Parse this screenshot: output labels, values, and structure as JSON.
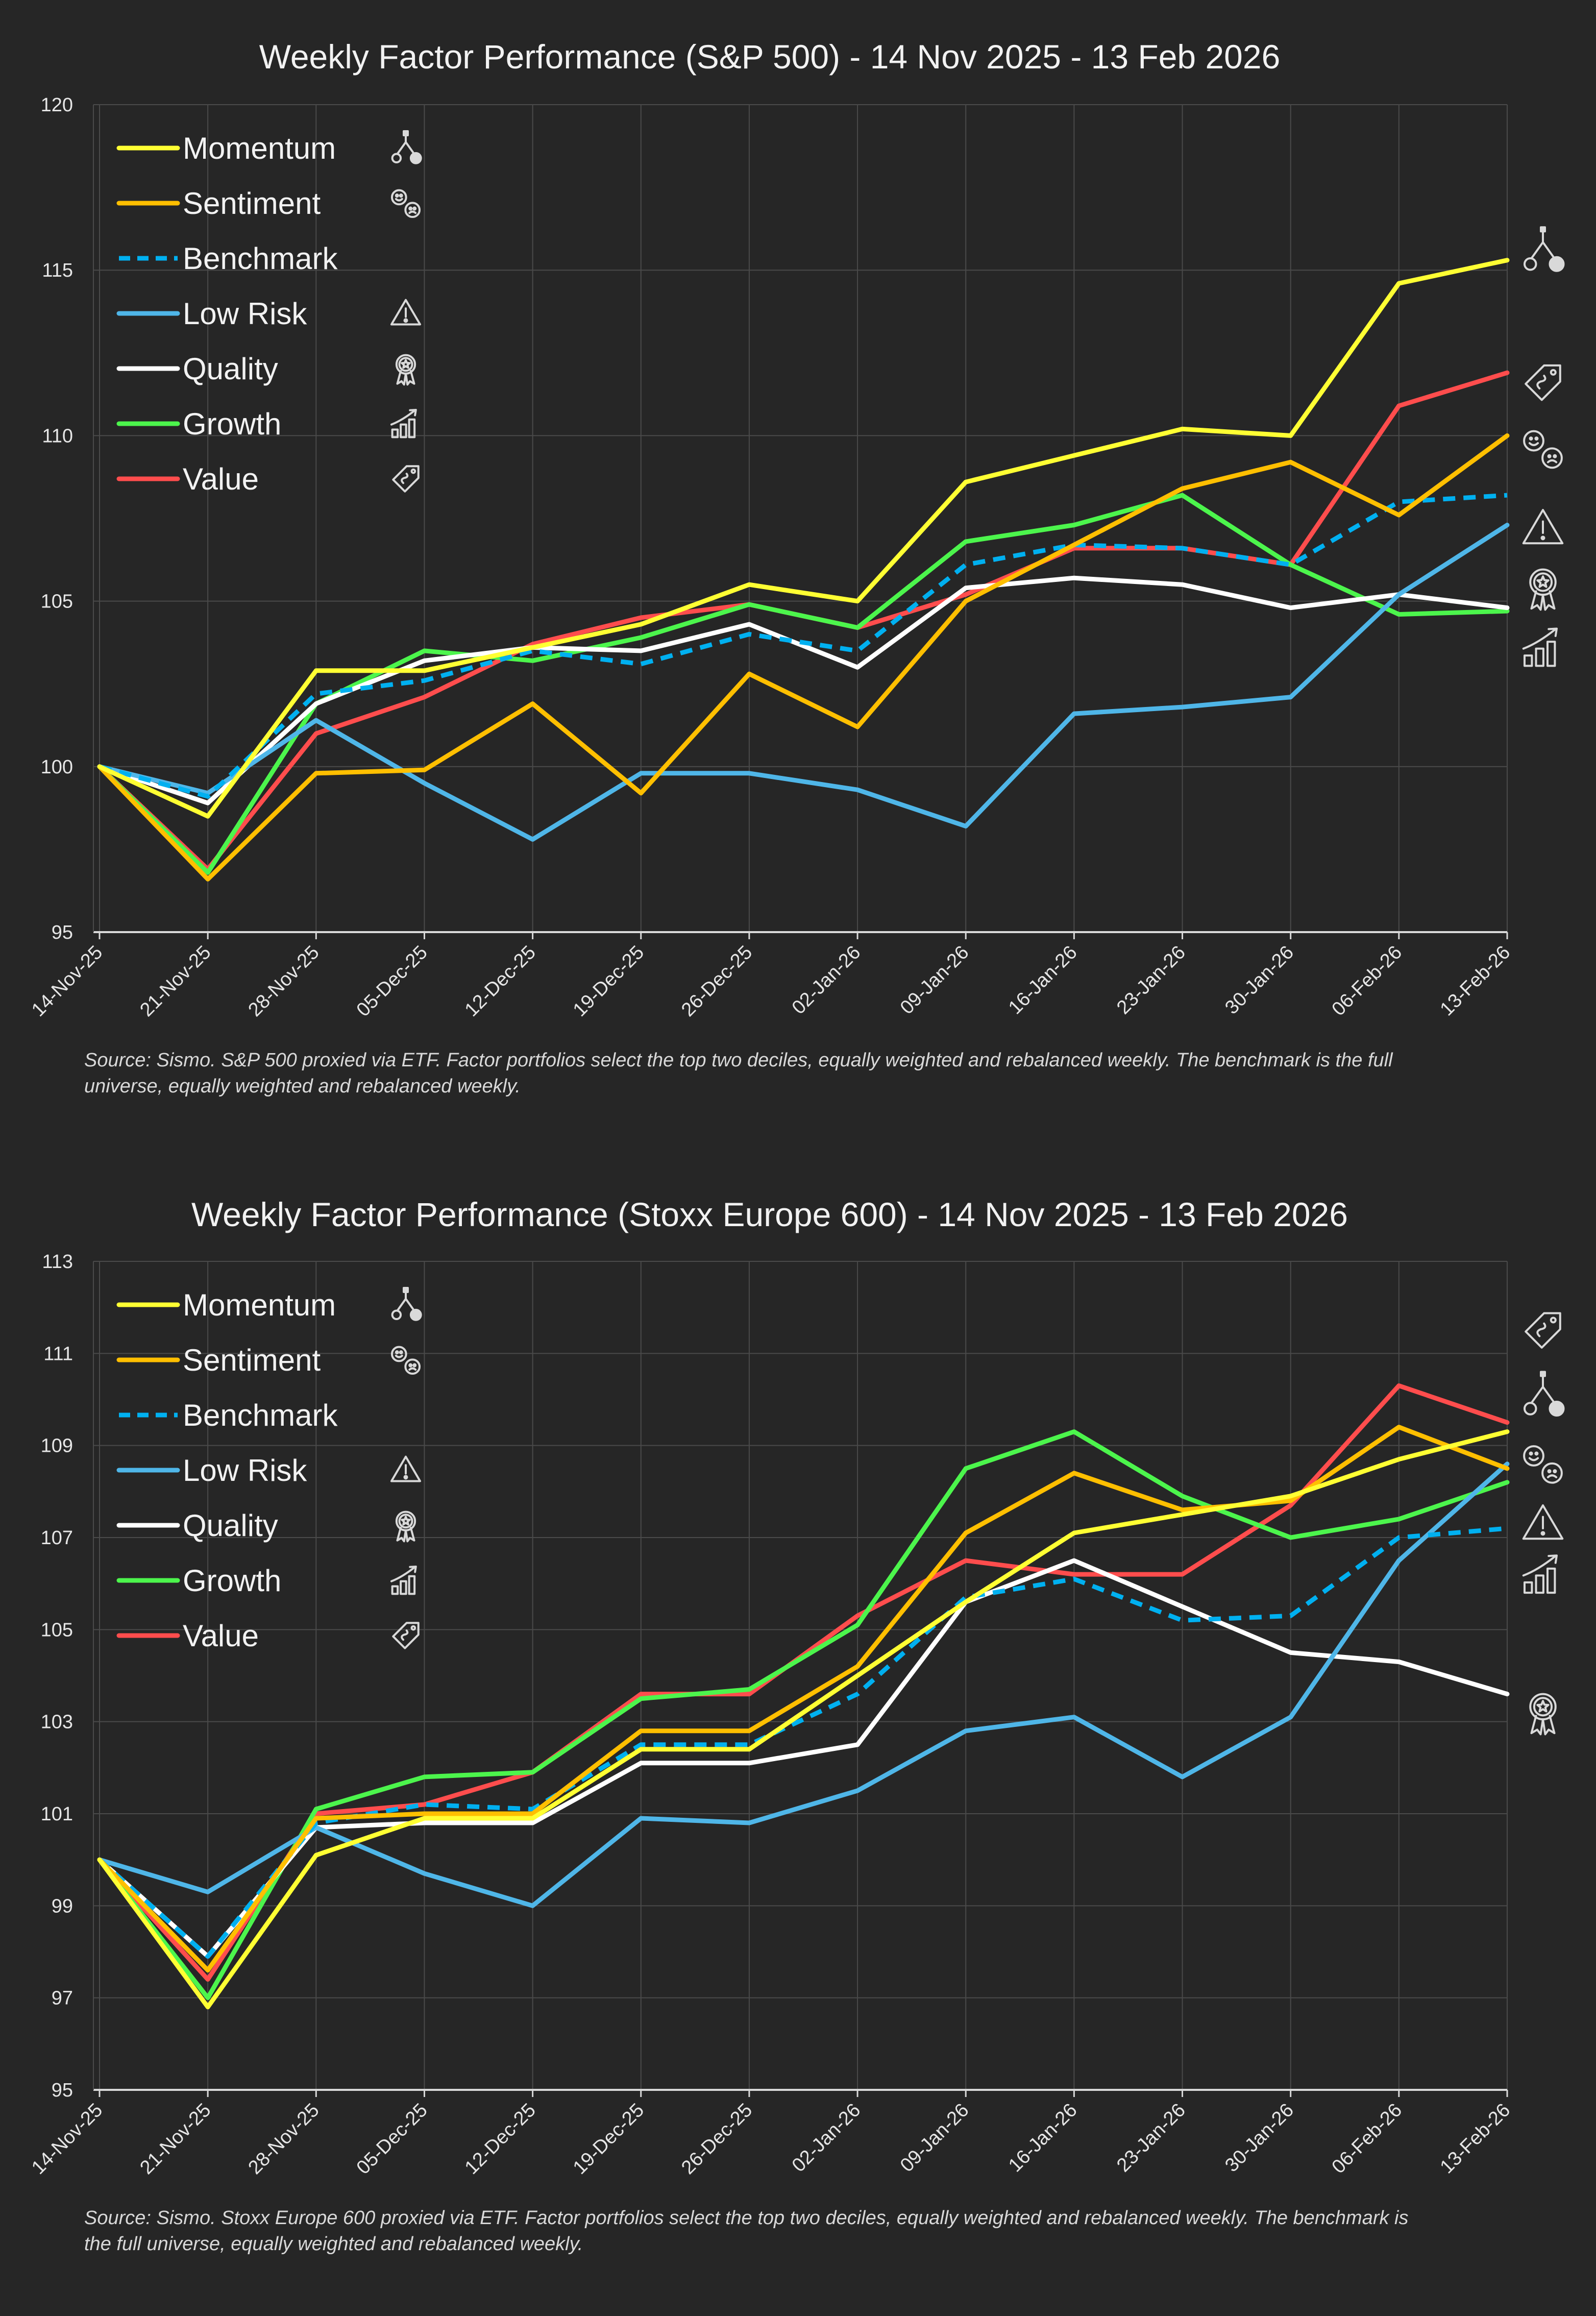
{
  "colors": {
    "background": "#262626",
    "grid": "#4a4a4a",
    "axis": "#d9d9d9",
    "Momentum": "#ffff33",
    "Sentiment": "#ffbf00",
    "Benchmark": "#00b0f0",
    "Low Risk": "#4fb6e8",
    "Quality": "#ffffff",
    "Growth": "#4cf54c",
    "Value": "#ff4d4d"
  },
  "chart_data": [
    {
      "type": "line",
      "title": "Weekly Factor Performance (S&P 500) - 14 Nov 2025 - 13 Feb 2026",
      "categories": [
        "14-Nov-25",
        "21-Nov-25",
        "28-Nov-25",
        "05-Dec-25",
        "12-Dec-25",
        "19-Dec-25",
        "26-Dec-25",
        "02-Jan-26",
        "09-Jan-26",
        "16-Jan-26",
        "23-Jan-26",
        "30-Jan-26",
        "06-Feb-26",
        "13-Feb-26"
      ],
      "ylim": [
        95,
        120
      ],
      "yticks": [
        95,
        100,
        105,
        110,
        115,
        120
      ],
      "grid": true,
      "legend_position": "top-left",
      "series": [
        {
          "name": "Momentum",
          "style": "solid",
          "icon": "momentum-icon",
          "values": [
            100,
            98.5,
            102.9,
            102.9,
            103.6,
            104.3,
            105.5,
            105.0,
            108.6,
            109.4,
            110.2,
            110.0,
            114.6,
            115.3
          ]
        },
        {
          "name": "Sentiment",
          "style": "solid",
          "icon": "sentiment-icon",
          "values": [
            100,
            96.6,
            99.8,
            99.9,
            101.9,
            99.2,
            102.8,
            101.2,
            105.0,
            106.7,
            108.4,
            109.2,
            107.6,
            110.0
          ]
        },
        {
          "name": "Benchmark",
          "style": "dashed",
          "icon": "",
          "values": [
            100,
            99.1,
            102.2,
            102.6,
            103.5,
            103.1,
            104.0,
            103.5,
            106.1,
            106.7,
            106.6,
            106.1,
            108.0,
            108.2
          ]
        },
        {
          "name": "Low Risk",
          "style": "solid",
          "icon": "low-risk-icon",
          "values": [
            100,
            99.2,
            101.4,
            99.5,
            97.8,
            99.8,
            99.8,
            99.3,
            98.2,
            101.6,
            101.8,
            102.1,
            105.2,
            107.3
          ]
        },
        {
          "name": "Quality",
          "style": "solid",
          "icon": "quality-icon",
          "values": [
            100,
            98.9,
            101.9,
            103.2,
            103.6,
            103.5,
            104.3,
            103.0,
            105.4,
            105.7,
            105.5,
            104.8,
            105.2,
            104.8
          ]
        },
        {
          "name": "Growth",
          "style": "solid",
          "icon": "growth-icon",
          "values": [
            100,
            96.8,
            101.9,
            103.5,
            103.2,
            103.9,
            104.9,
            104.2,
            106.8,
            107.3,
            108.2,
            106.1,
            104.6,
            104.7
          ]
        },
        {
          "name": "Value",
          "style": "solid",
          "icon": "value-icon",
          "values": [
            100,
            96.9,
            101.0,
            102.1,
            103.7,
            104.5,
            104.9,
            104.2,
            105.2,
            106.6,
            106.6,
            106.1,
            110.9,
            111.9
          ]
        }
      ],
      "right_icons": [
        {
          "icon": "momentum-icon",
          "value": 115.6
        },
        {
          "icon": "value-icon",
          "value": 111.6
        },
        {
          "icon": "sentiment-icon",
          "value": 109.6
        },
        {
          "icon": "low-risk-icon",
          "value": 107.2
        },
        {
          "icon": "quality-icon",
          "value": 105.4
        },
        {
          "icon": "growth-icon",
          "value": 103.6
        }
      ],
      "source": [
        "Source: Sismo. S&P 500 proxied via ETF.  Factor portfolios select the top two deciles, equally weighted and rebalanced weekly. The benchmark is the full",
        "universe, equally weighted and rebalanced weekly."
      ]
    },
    {
      "type": "line",
      "title": "Weekly Factor Performance (Stoxx Europe 600) - 14 Nov 2025 - 13 Feb 2026",
      "categories": [
        "14-Nov-25",
        "21-Nov-25",
        "28-Nov-25",
        "05-Dec-25",
        "12-Dec-25",
        "19-Dec-25",
        "26-Dec-25",
        "02-Jan-26",
        "09-Jan-26",
        "16-Jan-26",
        "23-Jan-26",
        "30-Jan-26",
        "06-Feb-26",
        "13-Feb-26"
      ],
      "ylim": [
        95,
        113
      ],
      "yticks": [
        95,
        97,
        99,
        101,
        103,
        105,
        107,
        109,
        111,
        113
      ],
      "grid": true,
      "legend_position": "top-left",
      "series": [
        {
          "name": "Momentum",
          "style": "solid",
          "icon": "momentum-icon",
          "values": [
            100,
            96.8,
            100.1,
            100.9,
            100.9,
            102.4,
            102.4,
            104.0,
            105.6,
            107.1,
            107.5,
            107.9,
            108.7,
            109.3
          ]
        },
        {
          "name": "Sentiment",
          "style": "solid",
          "icon": "sentiment-icon",
          "values": [
            100,
            97.6,
            100.9,
            101.0,
            101.0,
            102.8,
            102.8,
            104.2,
            107.1,
            108.4,
            107.6,
            107.8,
            109.4,
            108.5
          ]
        },
        {
          "name": "Benchmark",
          "style": "dashed",
          "icon": "",
          "values": [
            100,
            97.9,
            100.8,
            101.2,
            101.1,
            102.5,
            102.5,
            103.6,
            105.7,
            106.1,
            105.2,
            105.3,
            107.0,
            107.2
          ]
        },
        {
          "name": "Low Risk",
          "style": "solid",
          "icon": "low-risk-icon",
          "values": [
            100,
            99.3,
            100.7,
            99.7,
            99.0,
            100.9,
            100.8,
            101.5,
            102.8,
            103.1,
            101.8,
            103.1,
            106.5,
            108.6
          ]
        },
        {
          "name": "Quality",
          "style": "solid",
          "icon": "quality-icon",
          "values": [
            100,
            97.9,
            100.7,
            100.8,
            100.8,
            102.1,
            102.1,
            102.5,
            105.6,
            106.5,
            105.5,
            104.5,
            104.3,
            103.6
          ]
        },
        {
          "name": "Growth",
          "style": "solid",
          "icon": "growth-icon",
          "values": [
            100,
            97.0,
            101.1,
            101.8,
            101.9,
            103.5,
            103.7,
            105.1,
            108.5,
            109.3,
            107.9,
            107.0,
            107.4,
            108.2
          ]
        },
        {
          "name": "Value",
          "style": "solid",
          "icon": "value-icon",
          "values": [
            100,
            97.4,
            101.0,
            101.2,
            101.9,
            103.6,
            103.6,
            105.3,
            106.5,
            106.2,
            106.2,
            107.7,
            110.3,
            109.5
          ]
        }
      ],
      "right_icons": [
        {
          "icon": "value-icon",
          "value": 111.5
        },
        {
          "icon": "momentum-icon",
          "value": 110.1
        },
        {
          "icon": "sentiment-icon",
          "value": 108.6
        },
        {
          "icon": "low-risk-icon",
          "value": 107.3
        },
        {
          "icon": "growth-icon",
          "value": 106.2
        },
        {
          "icon": "quality-icon",
          "value": 103.2
        }
      ],
      "source": [
        "Source: Sismo. Stoxx Europe 600 proxied via ETF.  Factor portfolios select the top two deciles, equally weighted and rebalanced weekly. The benchmark is",
        "the full universe, equally weighted and rebalanced weekly."
      ]
    }
  ]
}
